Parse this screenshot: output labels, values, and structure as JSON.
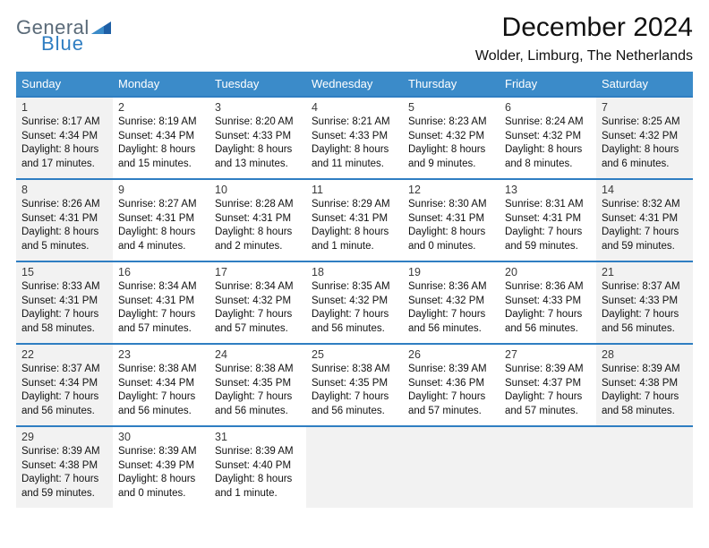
{
  "logo": {
    "word1": "General",
    "word2": "Blue"
  },
  "title": "December 2024",
  "location": "Wolder, Limburg, The Netherlands",
  "colors": {
    "header_bg": "#3b8bc9",
    "row_border": "#2f7ec2",
    "shaded_bg": "#f2f2f2",
    "logo_gray": "#5a6a78",
    "logo_blue": "#2f7ec2"
  },
  "weekdays": [
    "Sunday",
    "Monday",
    "Tuesday",
    "Wednesday",
    "Thursday",
    "Friday",
    "Saturday"
  ],
  "weeks": [
    [
      {
        "n": "1",
        "shaded": true,
        "sunrise": "Sunrise: 8:17 AM",
        "sunset": "Sunset: 4:34 PM",
        "dl1": "Daylight: 8 hours",
        "dl2": "and 17 minutes."
      },
      {
        "n": "2",
        "shaded": false,
        "sunrise": "Sunrise: 8:19 AM",
        "sunset": "Sunset: 4:34 PM",
        "dl1": "Daylight: 8 hours",
        "dl2": "and 15 minutes."
      },
      {
        "n": "3",
        "shaded": false,
        "sunrise": "Sunrise: 8:20 AM",
        "sunset": "Sunset: 4:33 PM",
        "dl1": "Daylight: 8 hours",
        "dl2": "and 13 minutes."
      },
      {
        "n": "4",
        "shaded": false,
        "sunrise": "Sunrise: 8:21 AM",
        "sunset": "Sunset: 4:33 PM",
        "dl1": "Daylight: 8 hours",
        "dl2": "and 11 minutes."
      },
      {
        "n": "5",
        "shaded": false,
        "sunrise": "Sunrise: 8:23 AM",
        "sunset": "Sunset: 4:32 PM",
        "dl1": "Daylight: 8 hours",
        "dl2": "and 9 minutes."
      },
      {
        "n": "6",
        "shaded": false,
        "sunrise": "Sunrise: 8:24 AM",
        "sunset": "Sunset: 4:32 PM",
        "dl1": "Daylight: 8 hours",
        "dl2": "and 8 minutes."
      },
      {
        "n": "7",
        "shaded": true,
        "sunrise": "Sunrise: 8:25 AM",
        "sunset": "Sunset: 4:32 PM",
        "dl1": "Daylight: 8 hours",
        "dl2": "and 6 minutes."
      }
    ],
    [
      {
        "n": "8",
        "shaded": true,
        "sunrise": "Sunrise: 8:26 AM",
        "sunset": "Sunset: 4:31 PM",
        "dl1": "Daylight: 8 hours",
        "dl2": "and 5 minutes."
      },
      {
        "n": "9",
        "shaded": false,
        "sunrise": "Sunrise: 8:27 AM",
        "sunset": "Sunset: 4:31 PM",
        "dl1": "Daylight: 8 hours",
        "dl2": "and 4 minutes."
      },
      {
        "n": "10",
        "shaded": false,
        "sunrise": "Sunrise: 8:28 AM",
        "sunset": "Sunset: 4:31 PM",
        "dl1": "Daylight: 8 hours",
        "dl2": "and 2 minutes."
      },
      {
        "n": "11",
        "shaded": false,
        "sunrise": "Sunrise: 8:29 AM",
        "sunset": "Sunset: 4:31 PM",
        "dl1": "Daylight: 8 hours",
        "dl2": "and 1 minute."
      },
      {
        "n": "12",
        "shaded": false,
        "sunrise": "Sunrise: 8:30 AM",
        "sunset": "Sunset: 4:31 PM",
        "dl1": "Daylight: 8 hours",
        "dl2": "and 0 minutes."
      },
      {
        "n": "13",
        "shaded": false,
        "sunrise": "Sunrise: 8:31 AM",
        "sunset": "Sunset: 4:31 PM",
        "dl1": "Daylight: 7 hours",
        "dl2": "and 59 minutes."
      },
      {
        "n": "14",
        "shaded": true,
        "sunrise": "Sunrise: 8:32 AM",
        "sunset": "Sunset: 4:31 PM",
        "dl1": "Daylight: 7 hours",
        "dl2": "and 59 minutes."
      }
    ],
    [
      {
        "n": "15",
        "shaded": true,
        "sunrise": "Sunrise: 8:33 AM",
        "sunset": "Sunset: 4:31 PM",
        "dl1": "Daylight: 7 hours",
        "dl2": "and 58 minutes."
      },
      {
        "n": "16",
        "shaded": false,
        "sunrise": "Sunrise: 8:34 AM",
        "sunset": "Sunset: 4:31 PM",
        "dl1": "Daylight: 7 hours",
        "dl2": "and 57 minutes."
      },
      {
        "n": "17",
        "shaded": false,
        "sunrise": "Sunrise: 8:34 AM",
        "sunset": "Sunset: 4:32 PM",
        "dl1": "Daylight: 7 hours",
        "dl2": "and 57 minutes."
      },
      {
        "n": "18",
        "shaded": false,
        "sunrise": "Sunrise: 8:35 AM",
        "sunset": "Sunset: 4:32 PM",
        "dl1": "Daylight: 7 hours",
        "dl2": "and 56 minutes."
      },
      {
        "n": "19",
        "shaded": false,
        "sunrise": "Sunrise: 8:36 AM",
        "sunset": "Sunset: 4:32 PM",
        "dl1": "Daylight: 7 hours",
        "dl2": "and 56 minutes."
      },
      {
        "n": "20",
        "shaded": false,
        "sunrise": "Sunrise: 8:36 AM",
        "sunset": "Sunset: 4:33 PM",
        "dl1": "Daylight: 7 hours",
        "dl2": "and 56 minutes."
      },
      {
        "n": "21",
        "shaded": true,
        "sunrise": "Sunrise: 8:37 AM",
        "sunset": "Sunset: 4:33 PM",
        "dl1": "Daylight: 7 hours",
        "dl2": "and 56 minutes."
      }
    ],
    [
      {
        "n": "22",
        "shaded": true,
        "sunrise": "Sunrise: 8:37 AM",
        "sunset": "Sunset: 4:34 PM",
        "dl1": "Daylight: 7 hours",
        "dl2": "and 56 minutes."
      },
      {
        "n": "23",
        "shaded": false,
        "sunrise": "Sunrise: 8:38 AM",
        "sunset": "Sunset: 4:34 PM",
        "dl1": "Daylight: 7 hours",
        "dl2": "and 56 minutes."
      },
      {
        "n": "24",
        "shaded": false,
        "sunrise": "Sunrise: 8:38 AM",
        "sunset": "Sunset: 4:35 PM",
        "dl1": "Daylight: 7 hours",
        "dl2": "and 56 minutes."
      },
      {
        "n": "25",
        "shaded": false,
        "sunrise": "Sunrise: 8:38 AM",
        "sunset": "Sunset: 4:35 PM",
        "dl1": "Daylight: 7 hours",
        "dl2": "and 56 minutes."
      },
      {
        "n": "26",
        "shaded": false,
        "sunrise": "Sunrise: 8:39 AM",
        "sunset": "Sunset: 4:36 PM",
        "dl1": "Daylight: 7 hours",
        "dl2": "and 57 minutes."
      },
      {
        "n": "27",
        "shaded": false,
        "sunrise": "Sunrise: 8:39 AM",
        "sunset": "Sunset: 4:37 PM",
        "dl1": "Daylight: 7 hours",
        "dl2": "and 57 minutes."
      },
      {
        "n": "28",
        "shaded": true,
        "sunrise": "Sunrise: 8:39 AM",
        "sunset": "Sunset: 4:38 PM",
        "dl1": "Daylight: 7 hours",
        "dl2": "and 58 minutes."
      }
    ],
    [
      {
        "n": "29",
        "shaded": true,
        "sunrise": "Sunrise: 8:39 AM",
        "sunset": "Sunset: 4:38 PM",
        "dl1": "Daylight: 7 hours",
        "dl2": "and 59 minutes."
      },
      {
        "n": "30",
        "shaded": false,
        "sunrise": "Sunrise: 8:39 AM",
        "sunset": "Sunset: 4:39 PM",
        "dl1": "Daylight: 8 hours",
        "dl2": "and 0 minutes."
      },
      {
        "n": "31",
        "shaded": false,
        "sunrise": "Sunrise: 8:39 AM",
        "sunset": "Sunset: 4:40 PM",
        "dl1": "Daylight: 8 hours",
        "dl2": "and 1 minute."
      },
      {
        "empty": true
      },
      {
        "empty": true
      },
      {
        "empty": true
      },
      {
        "empty": true
      }
    ]
  ]
}
